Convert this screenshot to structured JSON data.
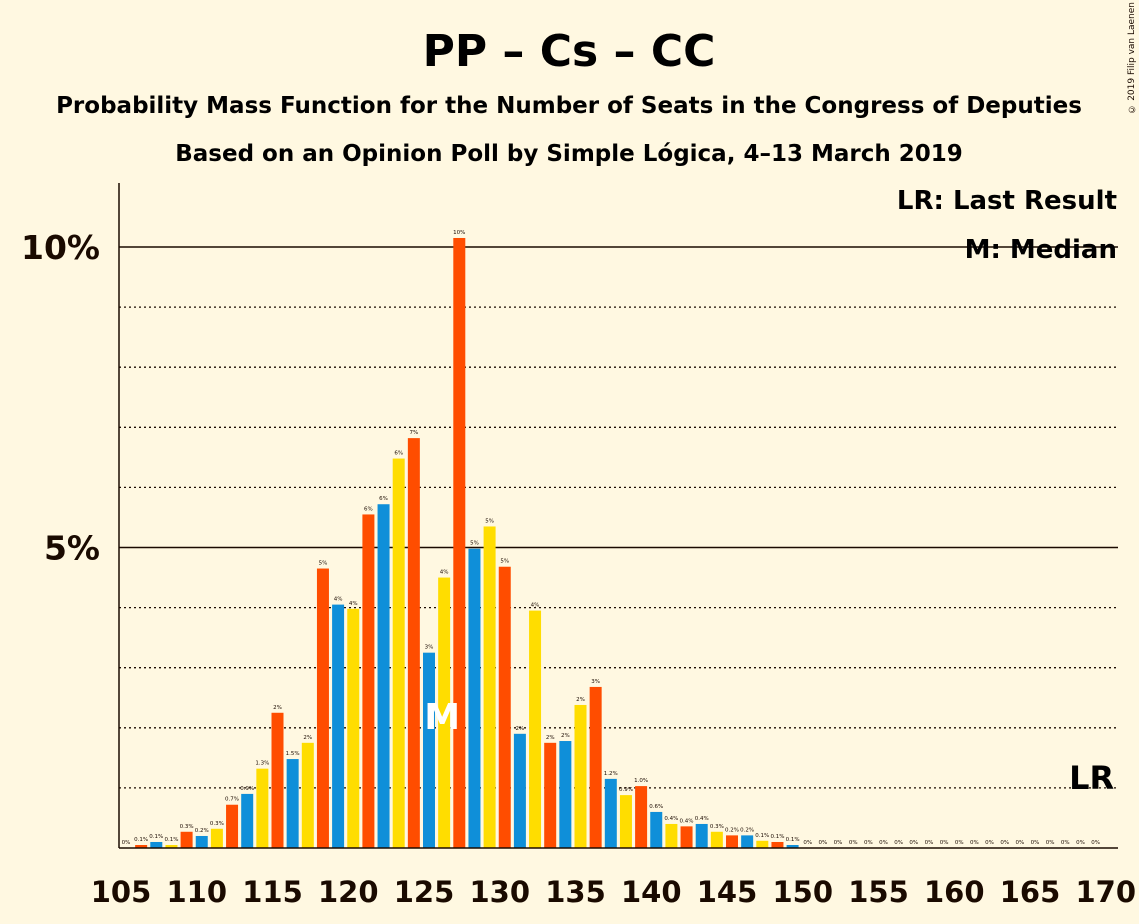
{
  "copyright": "© 2019 Filip van Laenen",
  "chart_data": {
    "type": "bar",
    "title": "PP – Cs – CC",
    "subtitle": "Probability Mass Function for the Number of Seats in the Congress of Deputies",
    "subtitle2": "Based on an Opinion Poll by Simple Lógica, 4–13 March 2019",
    "legend": [
      "LR: Last Result",
      "M: Median"
    ],
    "legend_placement": "top-right",
    "median_marker": "M",
    "median_seat": 126,
    "last_result_marker": "LR",
    "last_result_seat": 169,
    "xlim": [
      105,
      170
    ],
    "x_ticks": [
      105,
      110,
      115,
      120,
      125,
      130,
      135,
      140,
      145,
      150,
      155,
      160,
      165,
      170
    ],
    "ylim": [
      0,
      11
    ],
    "y_ticks": [
      {
        "value": 5,
        "label": "5%"
      },
      {
        "value": 10,
        "label": "10%"
      }
    ],
    "grid": "dotted every 1%, solid at 5% and 10%",
    "colors": {
      "PP": "#0f8fd9",
      "Cs": "#ff4d00",
      "CC": "#ffdd00",
      "background": "#fff8e1",
      "text": "#1a0a00"
    },
    "color_cycle": [
      "CC",
      "Cs",
      "PP"
    ],
    "bars": [
      {
        "seats": 105,
        "value": 0.0,
        "label": "0%"
      },
      {
        "seats": 106,
        "value": 0.05,
        "label": "0.1%"
      },
      {
        "seats": 107,
        "value": 0.1,
        "label": "0.1%"
      },
      {
        "seats": 108,
        "value": 0.05,
        "label": "0.1%"
      },
      {
        "seats": 109,
        "value": 0.27,
        "label": "0.3%"
      },
      {
        "seats": 110,
        "value": 0.2,
        "label": "0.2%"
      },
      {
        "seats": 111,
        "value": 0.32,
        "label": "0.3%"
      },
      {
        "seats": 112,
        "value": 0.72,
        "label": "0.7%"
      },
      {
        "seats": 113,
        "value": 0.9,
        "label": "0.9%"
      },
      {
        "seats": 114,
        "value": 1.32,
        "label": "1.3%"
      },
      {
        "seats": 115,
        "value": 2.25,
        "label": "2%"
      },
      {
        "seats": 116,
        "value": 1.48,
        "label": "1.5%"
      },
      {
        "seats": 117,
        "value": 1.75,
        "label": "2%"
      },
      {
        "seats": 118,
        "value": 4.65,
        "label": "5%"
      },
      {
        "seats": 119,
        "value": 4.05,
        "label": "4%"
      },
      {
        "seats": 120,
        "value": 3.98,
        "label": "4%"
      },
      {
        "seats": 121,
        "value": 5.55,
        "label": "6%"
      },
      {
        "seats": 122,
        "value": 5.72,
        "label": "6%"
      },
      {
        "seats": 123,
        "value": 6.48,
        "label": "6%"
      },
      {
        "seats": 124,
        "value": 6.82,
        "label": "7%"
      },
      {
        "seats": 125,
        "value": 3.25,
        "label": "3%"
      },
      {
        "seats": 126,
        "value": 4.5,
        "label": "4%"
      },
      {
        "seats": 127,
        "value": 10.15,
        "label": "10%"
      },
      {
        "seats": 128,
        "value": 4.98,
        "label": "5%"
      },
      {
        "seats": 129,
        "value": 5.35,
        "label": "5%"
      },
      {
        "seats": 130,
        "value": 4.68,
        "label": "5%"
      },
      {
        "seats": 131,
        "value": 1.9,
        "label": "2%"
      },
      {
        "seats": 132,
        "value": 3.95,
        "label": "4%"
      },
      {
        "seats": 133,
        "value": 1.75,
        "label": "2%"
      },
      {
        "seats": 134,
        "value": 1.78,
        "label": "2%"
      },
      {
        "seats": 135,
        "value": 2.38,
        "label": "2%"
      },
      {
        "seats": 136,
        "value": 2.68,
        "label": "3%"
      },
      {
        "seats": 137,
        "value": 1.15,
        "label": "1.2%"
      },
      {
        "seats": 138,
        "value": 0.88,
        "label": "0.9%"
      },
      {
        "seats": 139,
        "value": 1.03,
        "label": "1.0%"
      },
      {
        "seats": 140,
        "value": 0.6,
        "label": "0.6%"
      },
      {
        "seats": 141,
        "value": 0.4,
        "label": "0.4%"
      },
      {
        "seats": 142,
        "value": 0.36,
        "label": "0.4%"
      },
      {
        "seats": 143,
        "value": 0.4,
        "label": "0.4%"
      },
      {
        "seats": 144,
        "value": 0.27,
        "label": "0.3%"
      },
      {
        "seats": 145,
        "value": 0.21,
        "label": "0.2%"
      },
      {
        "seats": 146,
        "value": 0.21,
        "label": "0.2%"
      },
      {
        "seats": 147,
        "value": 0.12,
        "label": "0.1%"
      },
      {
        "seats": 148,
        "value": 0.1,
        "label": "0.1%"
      },
      {
        "seats": 149,
        "value": 0.05,
        "label": "0.1%"
      },
      {
        "seats": 150,
        "value": 0.0,
        "label": "0%"
      },
      {
        "seats": 151,
        "value": 0.0,
        "label": "0%"
      },
      {
        "seats": 152,
        "value": 0.0,
        "label": "0%"
      },
      {
        "seats": 153,
        "value": 0.0,
        "label": "0%"
      },
      {
        "seats": 154,
        "value": 0.0,
        "label": "0%"
      },
      {
        "seats": 155,
        "value": 0.0,
        "label": "0%"
      },
      {
        "seats": 156,
        "value": 0.0,
        "label": "0%"
      },
      {
        "seats": 157,
        "value": 0.0,
        "label": "0%"
      },
      {
        "seats": 158,
        "value": 0.0,
        "label": "0%"
      },
      {
        "seats": 159,
        "value": 0.0,
        "label": "0%"
      },
      {
        "seats": 160,
        "value": 0.0,
        "label": "0%"
      },
      {
        "seats": 161,
        "value": 0.0,
        "label": "0%"
      },
      {
        "seats": 162,
        "value": 0.0,
        "label": "0%"
      },
      {
        "seats": 163,
        "value": 0.0,
        "label": "0%"
      },
      {
        "seats": 164,
        "value": 0.0,
        "label": "0%"
      },
      {
        "seats": 165,
        "value": 0.0,
        "label": "0%"
      },
      {
        "seats": 166,
        "value": 0.0,
        "label": "0%"
      },
      {
        "seats": 167,
        "value": 0.0,
        "label": "0%"
      },
      {
        "seats": 168,
        "value": 0.0,
        "label": "0%"
      },
      {
        "seats": 169,
        "value": 0.0,
        "label": "0%"
      }
    ]
  }
}
